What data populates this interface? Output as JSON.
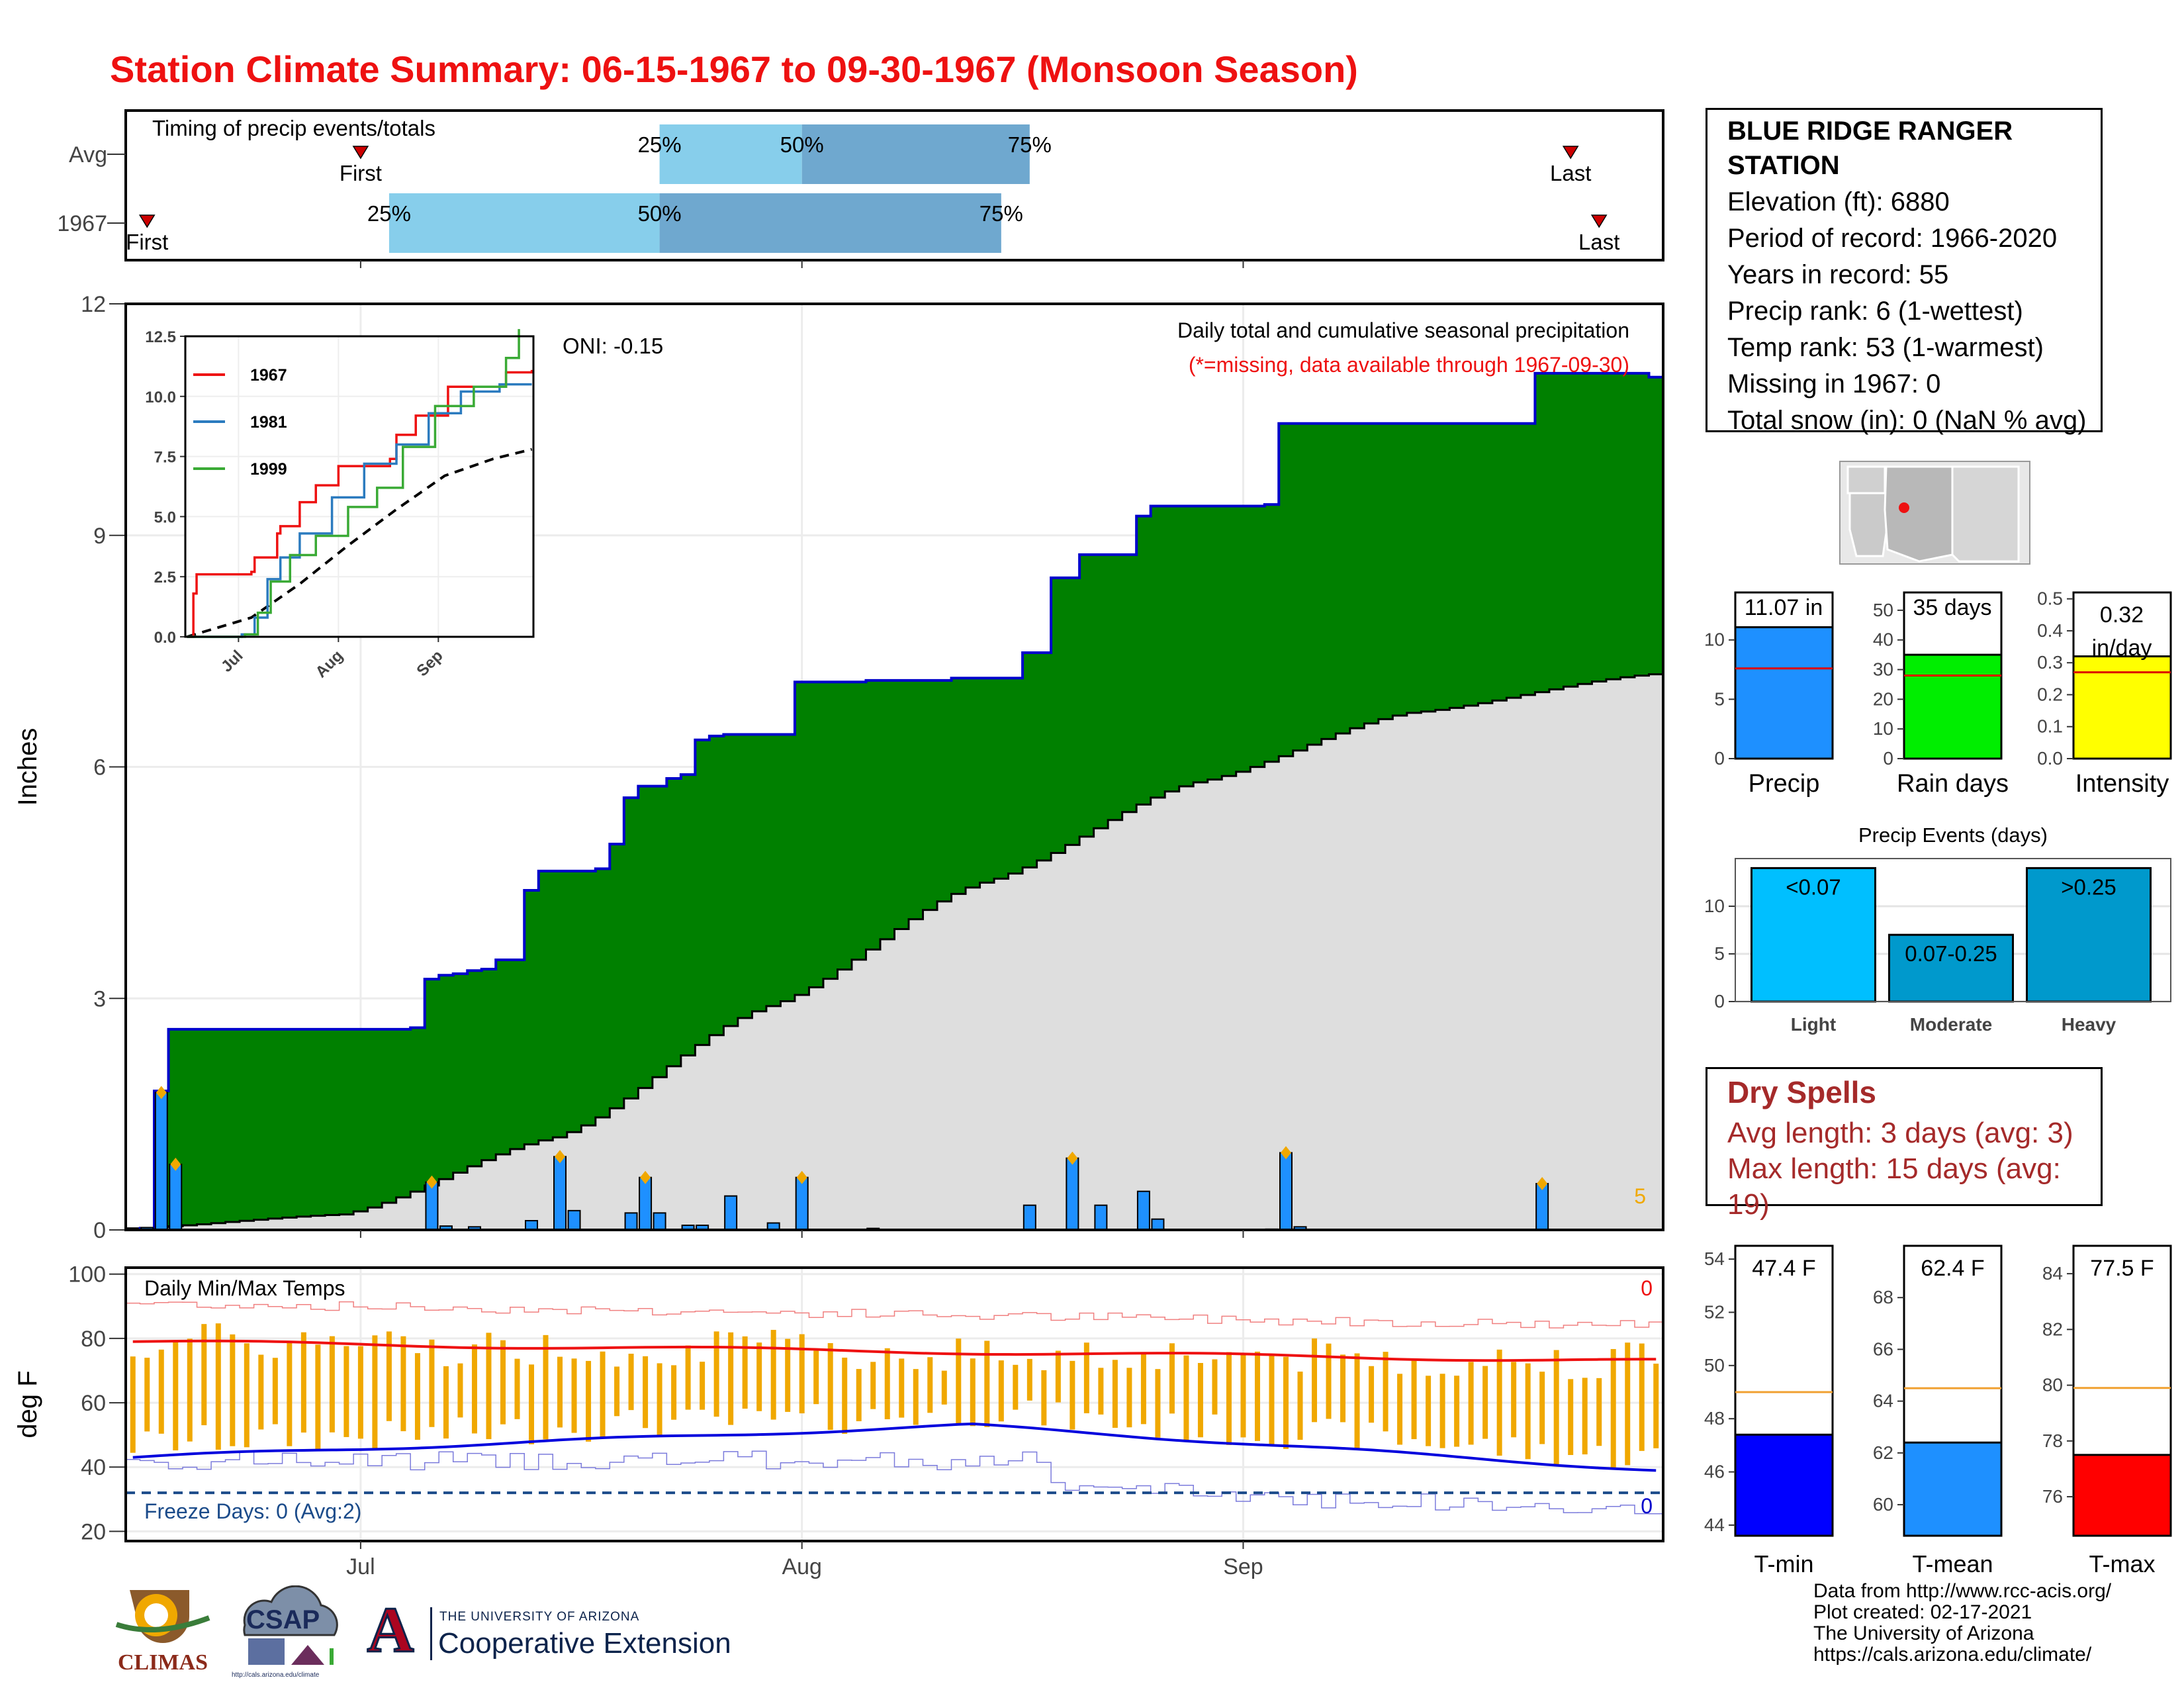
{
  "title": "Station Climate Summary: 06-15-1967 to 09-30-1967 (Monsoon Season)",
  "station": {
    "name_line1": "BLUE RIDGE RANGER",
    "name_line2": "STATION",
    "elevation": "Elevation (ft): 6880",
    "period": "Period of record: 1966-2020",
    "years": "Years in record: 55",
    "precip_rank": "Precip rank: 6 (1-wettest)",
    "temp_rank": "Temp rank: 53 (1-warmest)",
    "missing": "Missing in 1967: 0",
    "snow": "Total snow (in): 0 (NaN % avg)"
  },
  "dry_spells": {
    "title": "Dry Spells",
    "avg": "Avg length: 3 days (avg: 3)",
    "max": "Max length: 15 days (avg: 19)"
  },
  "credits": [
    "Data from http://www.rcc-acis.org/",
    "Plot created: 02-17-2021",
    "The University of Arizona",
    "https://cals.arizona.edu/climate/"
  ],
  "logos": {
    "climas": "CLIMAS",
    "csap": "CSAP",
    "csap_url": "http://cals.arizona.edu/climate",
    "ua_line1": "THE UNIVERSITY OF ARIZONA",
    "ua_line2": "Cooperative Extension",
    "ua_letter": "A"
  },
  "colors": {
    "title": "#ee1111",
    "green": "#008000",
    "blue_line": "#0000cc",
    "bar": "#1e90ff",
    "orange": "#f0a800",
    "red": "#ee1111",
    "light_blue": "#87ceeb",
    "mid_blue": "#6fa8cf"
  },
  "chart_data": [
    {
      "type": "bar",
      "title": "Timing of precip events/totals",
      "rows": [
        {
          "label": "Avg",
          "first": "Jul 1",
          "p25": "Jul 22",
          "p50": "Aug 1",
          "p75": "Aug 17",
          "last": "Sep 24"
        },
        {
          "label": "1967",
          "first": "Jun 16",
          "p25": "Jul 3",
          "p50": "Jul 22",
          "p75": "Aug 15",
          "last": "Sep 26"
        }
      ],
      "labels": {
        "first": "First",
        "last": "Last",
        "p25": "25%",
        "p50": "50%",
        "p75": "75%"
      }
    },
    {
      "type": "area",
      "title": "Daily total and cumulative seasonal precipitation",
      "subtitle": "(*=missing, data available through 1967-09-30)",
      "annotation": "ONI: -0.15",
      "ylabel": "Inches",
      "ylim": [
        0,
        12
      ],
      "yticks": [
        0,
        3,
        6,
        9,
        12
      ],
      "x_ticks": [
        "Jul",
        "Aug",
        "Sep"
      ],
      "corner_count": "5",
      "cumulative_1967": [
        [
          16,
          0.02
        ],
        [
          17,
          1.8
        ],
        [
          18,
          2.6
        ],
        [
          35,
          2.62
        ],
        [
          36,
          3.25
        ],
        [
          37,
          3.3
        ],
        [
          38,
          3.32
        ],
        [
          39,
          3.36
        ],
        [
          40,
          3.38
        ],
        [
          41,
          3.5
        ],
        [
          42,
          3.5
        ],
        [
          43,
          4.4
        ],
        [
          44,
          4.65
        ],
        [
          45,
          4.65
        ],
        [
          48,
          4.68
        ],
        [
          49,
          5.0
        ],
        [
          50,
          5.6
        ],
        [
          51,
          5.75
        ],
        [
          52,
          5.75
        ],
        [
          53,
          5.85
        ],
        [
          54,
          5.9
        ],
        [
          55,
          6.35
        ],
        [
          56,
          6.4
        ],
        [
          57,
          6.42
        ],
        [
          62,
          7.1
        ],
        [
          67,
          7.12
        ],
        [
          73,
          7.15
        ],
        [
          78,
          7.48
        ],
        [
          80,
          8.45
        ],
        [
          82,
          8.75
        ],
        [
          86,
          9.25
        ],
        [
          87,
          9.38
        ],
        [
          95,
          9.4
        ],
        [
          96,
          10.45
        ],
        [
          114,
          11.1
        ],
        [
          122,
          11.05
        ]
      ],
      "daily_bars": [
        [
          16,
          0.03
        ],
        [
          17,
          1.78
        ],
        [
          18,
          0.85
        ],
        [
          36,
          0.62
        ],
        [
          37,
          0.05
        ],
        [
          39,
          0.04
        ],
        [
          43,
          0.12
        ],
        [
          45,
          0.95
        ],
        [
          46,
          0.25
        ],
        [
          50,
          0.22
        ],
        [
          51,
          0.68
        ],
        [
          52,
          0.22
        ],
        [
          54,
          0.06
        ],
        [
          55,
          0.06
        ],
        [
          57,
          0.44
        ],
        [
          60,
          0.09
        ],
        [
          62,
          0.68
        ],
        [
          67,
          0.02
        ],
        [
          78,
          0.32
        ],
        [
          81,
          0.93
        ],
        [
          83,
          0.32
        ],
        [
          86,
          0.5
        ],
        [
          87,
          0.14
        ],
        [
          95,
          0.01
        ],
        [
          96,
          1.0
        ],
        [
          97,
          0.04
        ],
        [
          114,
          0.6
        ]
      ],
      "avg_cumulative": [
        [
          15,
          0.02
        ],
        [
          30,
          0.2
        ],
        [
          45,
          1.2
        ],
        [
          60,
          2.9
        ],
        [
          75,
          4.5
        ],
        [
          90,
          5.8
        ],
        [
          105,
          6.7
        ],
        [
          122,
          7.2
        ]
      ],
      "inset": {
        "type": "line",
        "yticks": [
          "0.0",
          "2.5",
          "5.0",
          "7.5",
          "10.0",
          "12.5"
        ],
        "x_ticks": [
          "Jul",
          "Aug",
          "Sep"
        ],
        "series": [
          {
            "name": "1967",
            "color": "#ee1111",
            "values": [
              [
                15,
                0
              ],
              [
                17,
                1.8
              ],
              [
                18,
                2.6
              ],
              [
                35,
                2.7
              ],
              [
                36,
                3.3
              ],
              [
                43,
                4.3
              ],
              [
                44,
                4.6
              ],
              [
                50,
                5.6
              ],
              [
                55,
                6.3
              ],
              [
                62,
                7.1
              ],
              [
                78,
                7.4
              ],
              [
                80,
                8.4
              ],
              [
                86,
                9.2
              ],
              [
                96,
                10.4
              ],
              [
                114,
                11.0
              ],
              [
                122,
                11.1
              ]
            ]
          },
          {
            "name": "1981",
            "color": "#2b7bbf",
            "values": [
              [
                15,
                0
              ],
              [
                32,
                0.1
              ],
              [
                36,
                0.8
              ],
              [
                40,
                2.4
              ],
              [
                44,
                3.3
              ],
              [
                50,
                4.3
              ],
              [
                60,
                5.8
              ],
              [
                70,
                7.2
              ],
              [
                80,
                8.0
              ],
              [
                90,
                9.3
              ],
              [
                100,
                10.2
              ],
              [
                112,
                10.5
              ],
              [
                122,
                10.5
              ]
            ]
          },
          {
            "name": "1999",
            "color": "#3aaa35",
            "values": [
              [
                15,
                0
              ],
              [
                33,
                0.1
              ],
              [
                37,
                1.0
              ],
              [
                41,
                2.3
              ],
              [
                47,
                3.4
              ],
              [
                55,
                4.2
              ],
              [
                65,
                5.4
              ],
              [
                74,
                6.2
              ],
              [
                82,
                7.9
              ],
              [
                92,
                9.6
              ],
              [
                104,
                10.4
              ],
              [
                114,
                11.6
              ],
              [
                118,
                12.8
              ]
            ]
          }
        ],
        "avg_values": [
          [
            15,
            0
          ],
          [
            35,
            0.8
          ],
          [
            50,
            2.2
          ],
          [
            65,
            3.8
          ],
          [
            80,
            5.3
          ],
          [
            95,
            6.7
          ],
          [
            110,
            7.4
          ],
          [
            122,
            7.8
          ]
        ]
      }
    },
    {
      "type": "line",
      "title": "Daily Min/Max Temps",
      "ylabel": "deg F",
      "ylim": [
        17,
        102
      ],
      "yticks": [
        20,
        40,
        60,
        80,
        100
      ],
      "freeze_text": "Freeze Days: 0 (Avg:2)",
      "top_count": "0",
      "bottom_count": "0",
      "freeze_line": 32,
      "avg_max_start": 79,
      "avg_max_end": 73,
      "avg_min_start": 43,
      "avg_min_mid": 53,
      "avg_min_end": 39,
      "record_high": 91,
      "record_low": 30
    },
    {
      "type": "bar",
      "label": "Precip",
      "value_label": "11.07 in",
      "value": 11.07,
      "avg": 7.6,
      "ylim": [
        0,
        14
      ],
      "yticks": [
        0,
        5,
        10
      ]
    },
    {
      "type": "bar",
      "label": "Rain days",
      "value_label": "35 days",
      "value": 35,
      "avg": 28,
      "ylim": [
        0,
        56
      ],
      "yticks": [
        0,
        10,
        20,
        30,
        40,
        50
      ]
    },
    {
      "type": "bar",
      "label": "Intensity",
      "value_label": "0.32 in/day",
      "value": 0.32,
      "avg": 0.27,
      "ylim": [
        0,
        0.52
      ],
      "yticks": [
        "0.0",
        "0.1",
        "0.2",
        "0.3",
        "0.4",
        "0.5"
      ]
    },
    {
      "type": "bar",
      "title": "Precip Events (days)",
      "categories": [
        "Light",
        "Moderate",
        "Heavy"
      ],
      "labels": [
        "<0.07",
        "0.07-0.25",
        ">0.25"
      ],
      "values": [
        14,
        7,
        14
      ],
      "ylim": [
        0,
        15
      ],
      "yticks": [
        0,
        5,
        10
      ]
    },
    {
      "type": "bar",
      "label": "T-min",
      "value_label": "47.4 F",
      "value": 47.4,
      "avg": 49.0,
      "ylim": [
        43.6,
        54.5
      ],
      "yticks": [
        44,
        46,
        48,
        50,
        52,
        54
      ]
    },
    {
      "type": "bar",
      "label": "T-mean",
      "value_label": "62.4 F",
      "value": 62.4,
      "avg": 64.5,
      "ylim": [
        58.8,
        70.0
      ],
      "yticks": [
        60,
        62,
        64,
        66,
        68
      ]
    },
    {
      "type": "bar",
      "label": "T-max",
      "value_label": "77.5 F",
      "value": 77.5,
      "avg": 79.9,
      "ylim": [
        74.6,
        85.0
      ],
      "yticks": [
        76,
        78,
        80,
        82,
        84
      ]
    }
  ]
}
